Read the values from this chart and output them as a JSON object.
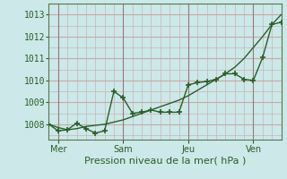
{
  "background_color": "#cce8e8",
  "grid_color_major": "#c8a8a8",
  "grid_color_minor": "#dcc8c8",
  "line_color": "#2a5e2a",
  "marker_color": "#2a5e2a",
  "ylabel_ticks": [
    1008,
    1009,
    1010,
    1011,
    1012,
    1013
  ],
  "xlabel": "Pression niveau de la mer( hPa )",
  "xtick_labels": [
    "Mer",
    "Sam",
    "Jeu",
    "Ven"
  ],
  "xtick_positions": [
    0.5,
    4.0,
    7.5,
    11.0
  ],
  "vline_positions": [
    0.5,
    4.0,
    7.5,
    11.0
  ],
  "ylim": [
    1007.3,
    1013.5
  ],
  "xlim": [
    0,
    12.5
  ],
  "smooth_x": [
    0.0,
    0.5,
    1.0,
    1.5,
    2.0,
    2.5,
    3.0,
    3.5,
    4.0,
    4.5,
    5.0,
    5.5,
    6.0,
    6.5,
    7.0,
    7.5,
    8.0,
    8.5,
    9.0,
    9.5,
    10.0,
    10.5,
    11.0,
    11.5,
    12.0,
    12.5
  ],
  "smooth_y": [
    1008.0,
    1007.85,
    1007.75,
    1007.8,
    1007.9,
    1007.95,
    1008.0,
    1008.1,
    1008.2,
    1008.35,
    1008.5,
    1008.65,
    1008.8,
    1008.95,
    1009.1,
    1009.3,
    1009.55,
    1009.8,
    1010.05,
    1010.3,
    1010.6,
    1011.0,
    1011.5,
    1012.0,
    1012.55,
    1013.0
  ],
  "jagged_x": [
    0.0,
    0.5,
    1.0,
    1.5,
    2.0,
    2.5,
    3.0,
    3.5,
    4.0,
    4.5,
    5.0,
    5.5,
    6.0,
    6.5,
    7.0,
    7.5,
    8.0,
    8.5,
    9.0,
    9.5,
    10.0,
    10.5,
    11.0,
    11.5,
    12.0,
    12.5
  ],
  "jagged_y": [
    1008.0,
    1007.7,
    1007.75,
    1008.05,
    1007.8,
    1007.6,
    1007.7,
    1009.5,
    1009.2,
    1008.5,
    1008.55,
    1008.65,
    1008.55,
    1008.55,
    1008.55,
    1009.8,
    1009.9,
    1009.95,
    1010.05,
    1010.3,
    1010.3,
    1010.05,
    1010.0,
    1011.05,
    1012.55,
    1012.65
  ],
  "xlabel_fontsize": 8,
  "tick_fontsize": 7,
  "line_width": 1.0,
  "marker_size": 4,
  "marker_style": "+"
}
